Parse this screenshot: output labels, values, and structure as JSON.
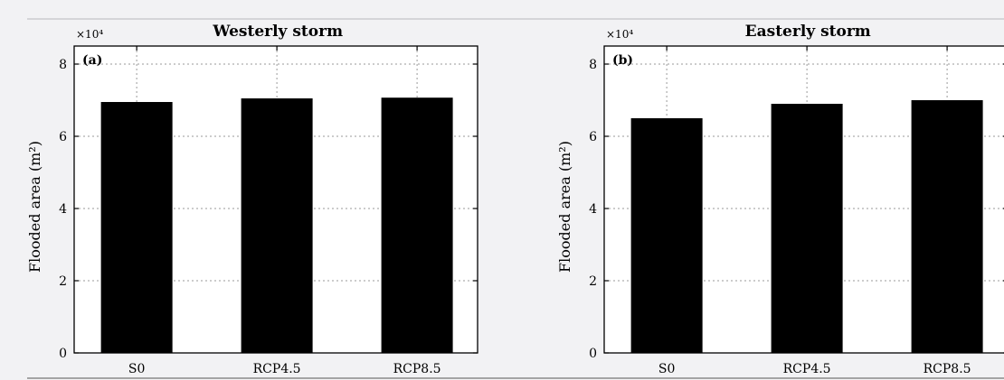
{
  "chart_data": [
    {
      "type": "bar",
      "title": "Westerly storm",
      "panel_label": "(a)",
      "categories": [
        "S0",
        "RCP4.5",
        "RCP8.5"
      ],
      "values": [
        69500,
        70500,
        70700
      ],
      "ylabel": "Flooded area (m²)",
      "y_multiplier": "×10⁴",
      "yticks": [
        0,
        20000,
        40000,
        60000,
        80000
      ],
      "ytick_labels": [
        "0",
        "2",
        "4",
        "6",
        "8"
      ],
      "ylim": [
        0,
        85000
      ],
      "grid": true,
      "bar_color": "#000000"
    },
    {
      "type": "bar",
      "title": "Easterly storm",
      "panel_label": "(b)",
      "categories": [
        "S0",
        "RCP4.5",
        "RCP8.5"
      ],
      "values": [
        65000,
        69000,
        70000
      ],
      "ylabel": "Flooded area (m²)",
      "y_multiplier": "×10⁴",
      "yticks": [
        0,
        20000,
        40000,
        60000,
        80000
      ],
      "ytick_labels": [
        "0",
        "2",
        "4",
        "6",
        "8"
      ],
      "ylim": [
        0,
        85000
      ],
      "grid": true,
      "bar_color": "#000000"
    }
  ]
}
